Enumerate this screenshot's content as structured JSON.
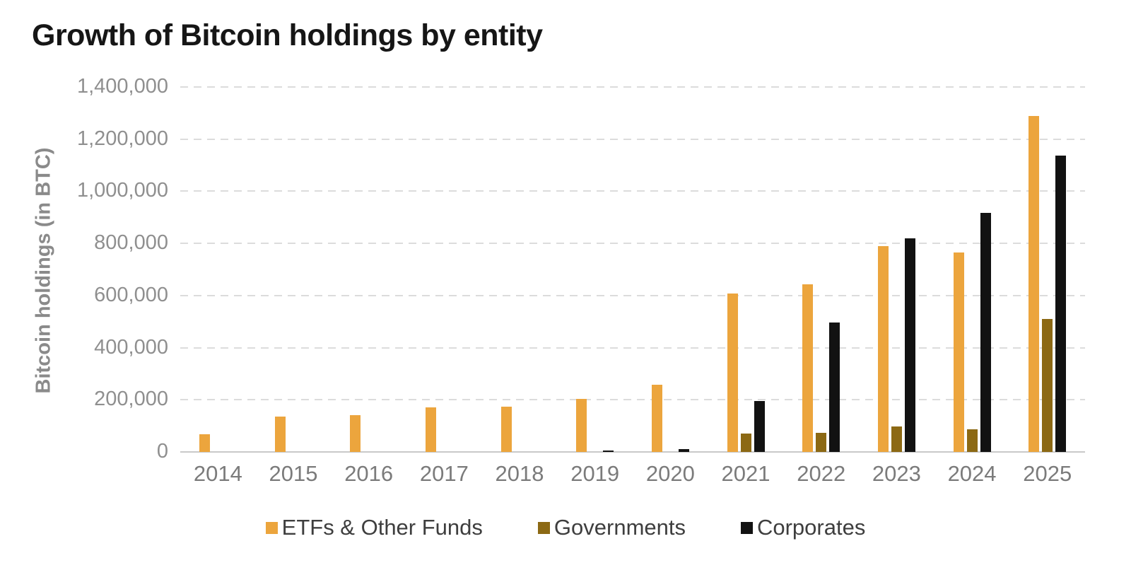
{
  "title": "Growth of Bitcoin holdings by entity",
  "chart_data": {
    "type": "bar",
    "title": "Growth of Bitcoin holdings by entity",
    "xlabel": "",
    "ylabel": "Bitcoin holdings (in BTC)",
    "categories": [
      "2014",
      "2015",
      "2016",
      "2017",
      "2018",
      "2019",
      "2020",
      "2021",
      "2022",
      "2023",
      "2024",
      "2025"
    ],
    "series": [
      {
        "name": "ETFs & Other Funds",
        "color": "#ECA53D",
        "values": [
          68000,
          135000,
          141000,
          170000,
          174000,
          203000,
          258000,
          607000,
          644000,
          790000,
          766000,
          1288000
        ]
      },
      {
        "name": "Governments",
        "color": "#8C6914",
        "values": [
          0,
          0,
          0,
          0,
          0,
          0,
          0,
          70000,
          74000,
          99000,
          88000,
          511000
        ]
      },
      {
        "name": "Corporates",
        "color": "#121212",
        "values": [
          0,
          0,
          0,
          0,
          0,
          5000,
          10000,
          196000,
          497000,
          820000,
          918000,
          1136000
        ]
      }
    ],
    "ylim": [
      0,
      1400000
    ],
    "ytick_step": 200000,
    "ytick_labels": [
      "0",
      "200,000",
      "400,000",
      "600,000",
      "800,000",
      "1,000,000",
      "1,200,000",
      "1,400,000"
    ],
    "grid": "horizontal-dashed",
    "legend_position": "bottom"
  },
  "colors": {
    "background": "#FFFFFF",
    "gridline": "#DCDCDC",
    "axis_line": "#C9C9C9",
    "title_text": "#161616",
    "y_tick_text": "#8F8F8F",
    "x_tick_text": "#7B7B7B",
    "legend_text": "#3E3E3E",
    "y_axis_title_text": "#8A8A8A"
  }
}
